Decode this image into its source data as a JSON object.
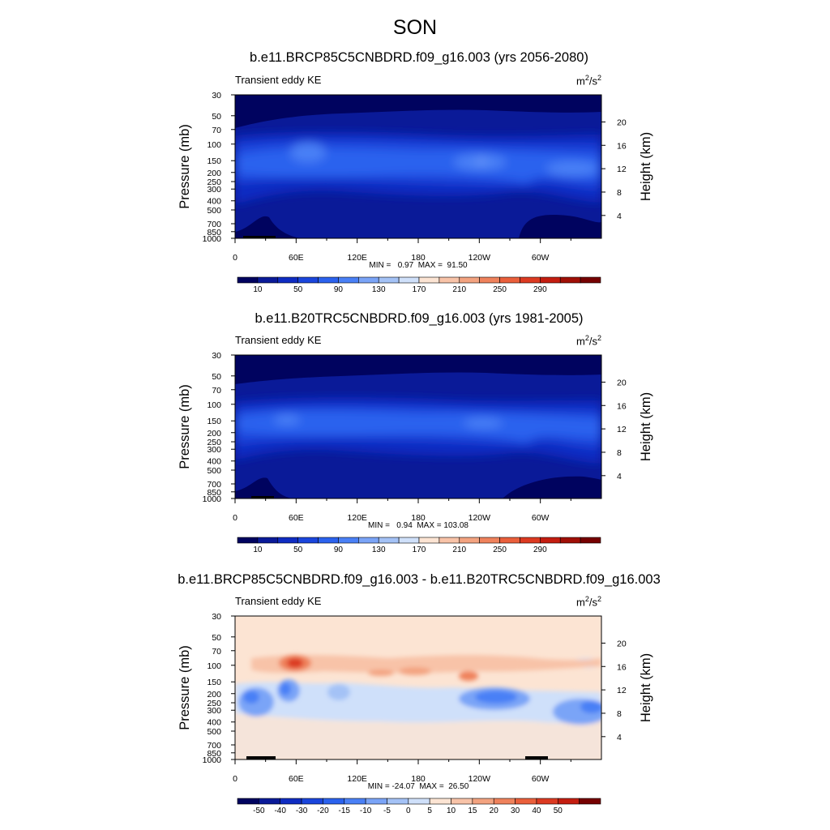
{
  "page": {
    "title": "SON"
  },
  "panels": [
    {
      "title": "b.e11.BRCP85C5CNBDRD.f09_g16.003 (yrs 2056-2080)",
      "left_string": "Transient eddy KE",
      "units_base": "m",
      "units_exp1": "2",
      "units_mid": "/s",
      "units_exp2": "2",
      "stats": "MIN =   0.97  MAX =  91.50"
    },
    {
      "title": "b.e11.B20TRC5CNBDRD.f09_g16.003 (yrs 1981-2005)",
      "left_string": "Transient eddy KE",
      "units_base": "m",
      "units_exp1": "2",
      "units_mid": "/s",
      "units_exp2": "2",
      "stats": "MIN =   0.94  MAX = 103.08"
    },
    {
      "title": "b.e11.BRCP85C5CNBDRD.f09_g16.003 - b.e11.B20TRC5CNBDRD.f09_g16.003",
      "left_string": "Transient eddy KE",
      "units_base": "m",
      "units_exp1": "2",
      "units_mid": "/s",
      "units_exp2": "2",
      "stats": "MIN = -24.07  MAX =  26.50"
    }
  ],
  "chart_data": {
    "type": "heatmap",
    "x_ticks": [
      "0",
      "60E",
      "120E",
      "180",
      "120W",
      "60W"
    ],
    "x_tick_values": [
      0,
      60,
      120,
      180,
      240,
      300
    ],
    "xlim": [
      0,
      360
    ],
    "y_label": "Pressure (mb)",
    "y_ticks": [
      "30",
      "50",
      "70",
      "100",
      "150",
      "200",
      "250",
      "300",
      "400",
      "500",
      "700",
      "850",
      "1000"
    ],
    "y_tick_values": [
      30,
      50,
      70,
      100,
      150,
      200,
      250,
      300,
      400,
      500,
      700,
      850,
      1000
    ],
    "ylim": [
      1000,
      30
    ],
    "y_scale": "log",
    "y2_label": "Height (km)",
    "y2_ticks": [
      "4",
      "8",
      "12",
      "16",
      "20"
    ],
    "y2_tick_values": [
      4,
      8,
      12,
      16,
      20
    ],
    "colorbars": [
      {
        "labels": [
          "10",
          "50",
          "90",
          "130",
          "170",
          "210",
          "250",
          "290"
        ],
        "colors": [
          "#00035f",
          "#0a1a98",
          "#0f2cc2",
          "#1a45dc",
          "#2b62ee",
          "#4a80f6",
          "#7aa4f7",
          "#a4c2f6",
          "#cfe0fa",
          "#fce4d3",
          "#f8c3a8",
          "#f3a380",
          "#ef825c",
          "#ea5f3b",
          "#dc3a21",
          "#c41d10",
          "#a00f06",
          "#760000"
        ]
      },
      {
        "labels": [
          "10",
          "50",
          "90",
          "130",
          "170",
          "210",
          "250",
          "290"
        ],
        "colors": [
          "#00035f",
          "#0a1a98",
          "#0f2cc2",
          "#1a45dc",
          "#2b62ee",
          "#4a80f6",
          "#7aa4f7",
          "#a4c2f6",
          "#cfe0fa",
          "#fce4d3",
          "#f8c3a8",
          "#f3a380",
          "#ef825c",
          "#ea5f3b",
          "#dc3a21",
          "#c41d10",
          "#a00f06",
          "#760000"
        ]
      },
      {
        "labels": [
          "-50",
          "-40",
          "-30",
          "-20",
          "-15",
          "-10",
          "-5",
          "0",
          "5",
          "10",
          "15",
          "20",
          "30",
          "40",
          "50"
        ],
        "colors": [
          "#00035f",
          "#0a1a98",
          "#0f2cc2",
          "#1a45dc",
          "#2b62ee",
          "#4a80f6",
          "#7aa4f7",
          "#a4c2f6",
          "#cfe0fa",
          "#fce4d3",
          "#f8c3a8",
          "#f3a380",
          "#ef825c",
          "#ea5f3b",
          "#dc3a21",
          "#c41d10",
          "#760000"
        ]
      }
    ]
  }
}
